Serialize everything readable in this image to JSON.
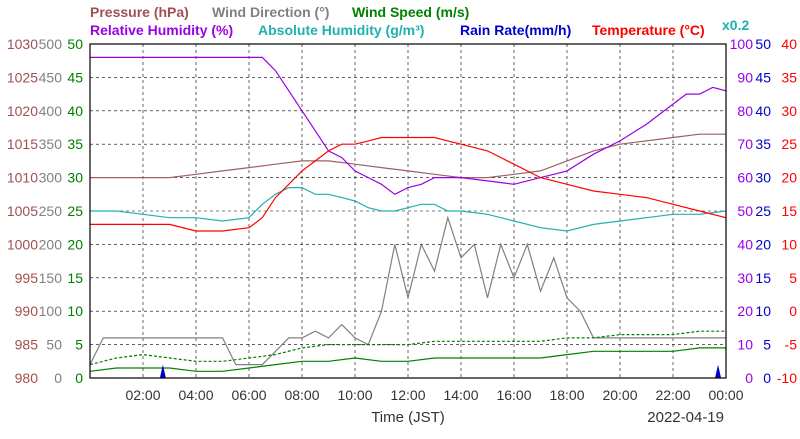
{
  "chart_data": {
    "type": "line",
    "date": "2022-04-19",
    "xlabel": "Time (JST)",
    "x_ticks": [
      "02:00",
      "04:00",
      "06:00",
      "08:00",
      "10:00",
      "12:00",
      "14:00",
      "16:00",
      "18:00",
      "20:00",
      "22:00",
      "00:00"
    ],
    "grid": true,
    "headers": {
      "pressure": "Pressure (hPa)",
      "wind_direction": "Wind Direction (°)",
      "wind_speed": "Wind Speed (m/s)",
      "humidity": "Relative Humidity (%)",
      "abs_humidity": "Absolute Humidity (g/m³)",
      "rain": "Rain Rate(mm/h)",
      "temperature": "Temperature (°C)",
      "scale_note": "x0.2"
    },
    "axes": {
      "pressure": {
        "ticks": [
          "1030",
          "1025",
          "1020",
          "1015",
          "1010",
          "1005",
          "1000",
          "995",
          "990",
          "985",
          "980"
        ],
        "range": [
          980,
          1030
        ],
        "color": "#a05050"
      },
      "wind_direction": {
        "ticks": [
          "500",
          "450",
          "400",
          "350",
          "300",
          "250",
          "200",
          "150",
          "100",
          "50",
          "0"
        ],
        "range": [
          0,
          500
        ],
        "color": "#808080"
      },
      "wind_speed": {
        "ticks": [
          "50",
          "45",
          "40",
          "35",
          "30",
          "25",
          "20",
          "15",
          "10",
          "5",
          "0"
        ],
        "range": [
          0,
          50
        ],
        "color": "#008000"
      },
      "humidity": {
        "ticks": [
          "100",
          "90",
          "80",
          "70",
          "60",
          "50",
          "40",
          "30",
          "20",
          "10",
          "0"
        ],
        "range": [
          0,
          100
        ],
        "color": "#9a00e6"
      },
      "rain": {
        "ticks": [
          "50",
          "45",
          "40",
          "35",
          "30",
          "25",
          "20",
          "15",
          "10",
          "5",
          "0"
        ],
        "range": [
          0,
          50
        ],
        "color": "#0000cc"
      },
      "temperature": {
        "ticks": [
          "40",
          "35",
          "30",
          "25",
          "20",
          "15",
          "10",
          "5",
          "0",
          "-5",
          "-10"
        ],
        "range": [
          -10,
          40
        ],
        "color": "#ff0000"
      }
    },
    "series": [
      {
        "name": "Pressure (hPa)",
        "key": "pressure",
        "color": "#a06060",
        "x": [
          0,
          1,
          2,
          3,
          4,
          5,
          6,
          7,
          8,
          9,
          10,
          11,
          12,
          13,
          14,
          15,
          16,
          17,
          18,
          19,
          20,
          21,
          22,
          23,
          24
        ],
        "y": [
          1010,
          1010,
          1010,
          1010,
          1010.5,
          1011,
          1011.5,
          1012,
          1012.5,
          1012.5,
          1012,
          1011.5,
          1011,
          1010.5,
          1010,
          1010,
          1010.5,
          1011,
          1012.5,
          1014,
          1015,
          1015.5,
          1016,
          1016.5,
          1016.5
        ]
      },
      {
        "name": "Wind Direction (°)",
        "key": "wind_direction",
        "color": "#808080",
        "x": [
          0,
          0.5,
          1,
          2,
          3,
          4,
          5,
          5.5,
          6,
          6.5,
          7,
          7.5,
          8,
          8.5,
          9,
          9.5,
          10,
          10.5,
          11,
          11.5,
          12,
          12.5,
          13,
          13.5,
          14,
          14.5,
          15,
          15.5,
          16,
          16.5,
          17,
          17.5,
          18,
          18.5,
          19,
          20,
          21,
          22,
          23,
          24
        ],
        "y": [
          20,
          60,
          60,
          60,
          60,
          60,
          60,
          20,
          20,
          20,
          40,
          60,
          60,
          70,
          60,
          80,
          60,
          50,
          100,
          200,
          120,
          200,
          160,
          240,
          180,
          200,
          120,
          200,
          150,
          200,
          130,
          180,
          120,
          100,
          60,
          60,
          60,
          60,
          60,
          60
        ]
      },
      {
        "name": "Wind Speed (m/s)",
        "key": "wind_speed",
        "color": "#008000",
        "x": [
          0,
          1,
          2,
          3,
          4,
          5,
          6,
          7,
          8,
          9,
          10,
          11,
          12,
          13,
          14,
          15,
          16,
          17,
          18,
          19,
          20,
          21,
          22,
          23,
          24
        ],
        "y": [
          1.0,
          1.5,
          1.5,
          1.5,
          1.0,
          1.0,
          1.5,
          2.0,
          2.5,
          2.5,
          3.0,
          2.5,
          2.5,
          3.0,
          3.0,
          3.0,
          3.0,
          3.0,
          3.5,
          4.0,
          4.0,
          4.0,
          4.0,
          4.5,
          4.5
        ]
      },
      {
        "name": "Wind Speed gust (m/s)",
        "key": "wind_speed",
        "color": "#008000",
        "dashed": true,
        "x": [
          0,
          1,
          2,
          3,
          4,
          5,
          6,
          7,
          8,
          9,
          10,
          11,
          12,
          13,
          14,
          15,
          16,
          17,
          18,
          19,
          20,
          21,
          22,
          23,
          24
        ],
        "y": [
          2.0,
          3.0,
          3.5,
          3.0,
          2.5,
          2.5,
          3.0,
          3.5,
          4.5,
          5.0,
          5.0,
          5.0,
          5.0,
          5.5,
          5.5,
          5.5,
          5.5,
          5.5,
          6.0,
          6.0,
          6.5,
          6.5,
          6.5,
          7.0,
          7.0
        ]
      },
      {
        "name": "Relative Humidity (%)",
        "key": "humidity",
        "color": "#9a00e6",
        "x": [
          0,
          1,
          2,
          3,
          4,
          5,
          6,
          6.5,
          7,
          7.5,
          8,
          8.5,
          9,
          9.5,
          10,
          10.5,
          11,
          11.5,
          12,
          12.5,
          13,
          13.5,
          14,
          15,
          16,
          16.5,
          17,
          17.5,
          18,
          19,
          20,
          21,
          21.5,
          22,
          22.5,
          23,
          23.5,
          24
        ],
        "y": [
          96,
          96,
          96,
          96,
          96,
          96,
          96,
          96,
          92,
          86,
          80,
          74,
          68,
          66,
          62,
          60,
          58,
          55,
          57,
          58,
          60,
          60,
          60,
          59,
          58,
          59,
          60,
          61,
          62,
          67,
          71,
          76,
          79,
          82,
          85,
          85,
          87,
          86
        ]
      },
      {
        "name": "Absolute Humidity (g/m³)",
        "key": "humidity",
        "color": "#20b0b0",
        "x": [
          0,
          1,
          2,
          3,
          4,
          5,
          6,
          6.5,
          7,
          7.5,
          8,
          8.5,
          9,
          9.5,
          10,
          10.5,
          11,
          11.5,
          12,
          12.5,
          13,
          13.5,
          14,
          15,
          16,
          17,
          18,
          19,
          20,
          21,
          22,
          23,
          24
        ],
        "y": [
          50,
          50,
          49,
          48,
          48,
          47,
          48,
          52,
          55,
          57,
          57,
          55,
          55,
          54,
          53,
          51,
          50,
          50,
          51,
          52,
          52,
          50,
          50,
          49,
          47,
          45,
          44,
          46,
          47,
          48,
          49,
          49,
          50
        ]
      },
      {
        "name": "Rain Rate(mm/h)",
        "key": "rain",
        "color": "#0000cc",
        "bars": true,
        "x": [
          2.75,
          23.7
        ],
        "y": [
          2.0,
          2.0
        ]
      },
      {
        "name": "Temperature (°C)",
        "key": "temperature",
        "color": "#ff0000",
        "x": [
          0,
          1,
          2,
          3,
          4,
          5,
          6,
          6.5,
          7,
          7.5,
          8,
          8.5,
          9,
          9.5,
          10,
          10.5,
          11,
          11.5,
          12,
          12.5,
          13,
          13.5,
          14,
          15,
          16,
          17,
          18,
          19,
          20,
          21,
          22,
          23,
          24
        ],
        "y": [
          13,
          13,
          13,
          13,
          12,
          12,
          12.5,
          14,
          17,
          19,
          21,
          22.5,
          24,
          25,
          25,
          25.5,
          26,
          26,
          26,
          26,
          26,
          25.5,
          25,
          24,
          22,
          20,
          19,
          18,
          17.5,
          17,
          16,
          15,
          14
        ]
      }
    ]
  }
}
